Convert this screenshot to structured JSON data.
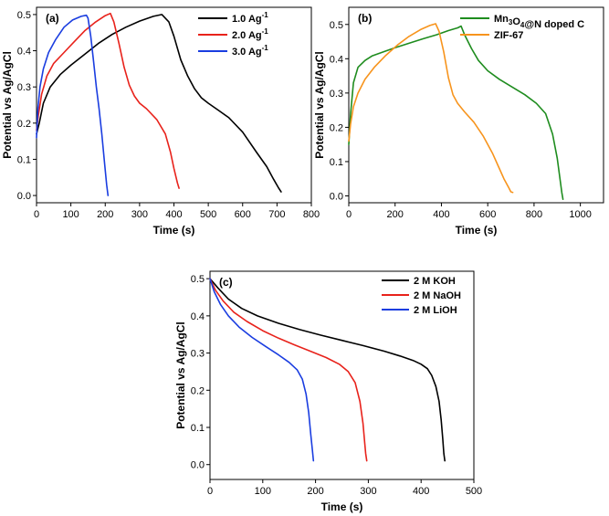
{
  "chart_data": [
    {
      "type": "line",
      "panel_label": "(a)",
      "xlabel": "Time (s)",
      "ylabel": "Potential vs Ag/AgCl",
      "xlim": [
        0,
        800
      ],
      "ylim": [
        -0.02,
        0.52
      ],
      "xticks": [
        0,
        100,
        200,
        300,
        400,
        500,
        600,
        700,
        800
      ],
      "yticks": [
        0.0,
        0.1,
        0.2,
        0.3,
        0.4,
        0.5
      ],
      "legend_position": "top-right",
      "series": [
        {
          "name": "1.0 Ag⁻¹",
          "legend": {
            "text": "1.0 Ag",
            "sup": "-1"
          },
          "color": "#000000",
          "x": [
            0,
            8,
            20,
            40,
            70,
            100,
            140,
            180,
            220,
            260,
            300,
            340,
            365,
            385,
            400,
            420,
            440,
            460,
            480,
            500,
            530,
            560,
            600,
            640,
            670,
            690,
            705,
            712
          ],
          "y": [
            0.17,
            0.2,
            0.255,
            0.3,
            0.335,
            0.36,
            0.39,
            0.42,
            0.445,
            0.465,
            0.482,
            0.495,
            0.5,
            0.48,
            0.44,
            0.375,
            0.33,
            0.295,
            0.27,
            0.255,
            0.235,
            0.215,
            0.175,
            0.12,
            0.08,
            0.045,
            0.02,
            0.01
          ]
        },
        {
          "name": "2.0 Ag⁻¹",
          "legend": {
            "text": "2.0 Ag",
            "sup": "-1"
          },
          "color": "#e8221b",
          "x": [
            0,
            5,
            15,
            30,
            50,
            80,
            110,
            140,
            170,
            200,
            215,
            225,
            240,
            255,
            270,
            285,
            300,
            320,
            350,
            375,
            390,
            400,
            410,
            415
          ],
          "y": [
            0.18,
            0.22,
            0.28,
            0.33,
            0.365,
            0.395,
            0.425,
            0.455,
            0.478,
            0.497,
            0.503,
            0.48,
            0.42,
            0.355,
            0.305,
            0.275,
            0.255,
            0.24,
            0.21,
            0.17,
            0.12,
            0.075,
            0.035,
            0.02
          ]
        },
        {
          "name": "3.0 Ag⁻¹",
          "legend": {
            "text": "3.0 Ag",
            "sup": "-1"
          },
          "color": "#1a3de0",
          "x": [
            0,
            4,
            10,
            20,
            35,
            55,
            80,
            105,
            130,
            145,
            150,
            158,
            166,
            174,
            182,
            190,
            198,
            204,
            208
          ],
          "y": [
            0.16,
            0.24,
            0.3,
            0.35,
            0.395,
            0.43,
            0.465,
            0.485,
            0.495,
            0.498,
            0.49,
            0.44,
            0.37,
            0.3,
            0.24,
            0.17,
            0.09,
            0.03,
            0.0
          ]
        }
      ]
    },
    {
      "type": "line",
      "panel_label": "(b)",
      "xlabel": "Time (s)",
      "ylabel": "Potential vs Ag/AgCl",
      "xlim": [
        0,
        1100
      ],
      "ylim": [
        -0.02,
        0.55
      ],
      "xticks": [
        0,
        200,
        400,
        600,
        800,
        1000
      ],
      "yticks": [
        0.0,
        0.1,
        0.2,
        0.3,
        0.4,
        0.5
      ],
      "legend_position": "top-right",
      "series": [
        {
          "name": "Mn₃O₄@N doped C",
          "legend": {
            "text": "Mn",
            "parts": [
              [
                "Mn",
                ""
              ],
              [
                "3",
                "sub"
              ],
              [
                "O",
                ""
              ],
              [
                "4",
                "sub"
              ],
              [
                "@N doped C",
                ""
              ]
            ]
          },
          "color": "#1e8c1e",
          "x": [
            0,
            8,
            20,
            40,
            70,
            100,
            150,
            200,
            260,
            320,
            380,
            430,
            470,
            485,
            500,
            530,
            560,
            600,
            650,
            700,
            760,
            810,
            850,
            880,
            900,
            912,
            920,
            925
          ],
          "y": [
            0.15,
            0.24,
            0.33,
            0.375,
            0.395,
            0.408,
            0.42,
            0.432,
            0.445,
            0.458,
            0.47,
            0.482,
            0.49,
            0.495,
            0.47,
            0.43,
            0.395,
            0.365,
            0.34,
            0.32,
            0.295,
            0.27,
            0.24,
            0.18,
            0.11,
            0.05,
            0.01,
            -0.01
          ]
        },
        {
          "name": "ZIF-67",
          "legend": {
            "text": "ZIF-67"
          },
          "color": "#f7941d",
          "x": [
            0,
            8,
            20,
            40,
            70,
            110,
            160,
            210,
            260,
            310,
            350,
            375,
            390,
            410,
            430,
            450,
            470,
            500,
            540,
            580,
            620,
            650,
            670,
            690,
            700,
            708
          ],
          "y": [
            0.16,
            0.21,
            0.26,
            0.3,
            0.34,
            0.375,
            0.41,
            0.44,
            0.465,
            0.485,
            0.497,
            0.502,
            0.48,
            0.42,
            0.345,
            0.295,
            0.27,
            0.245,
            0.215,
            0.175,
            0.125,
            0.08,
            0.05,
            0.025,
            0.012,
            0.01
          ]
        }
      ]
    },
    {
      "type": "line",
      "panel_label": "(c)",
      "xlabel": "Time (s)",
      "ylabel": "Potential vs Ag/AgCl",
      "xlim": [
        0,
        500
      ],
      "ylim": [
        -0.04,
        0.52
      ],
      "xticks": [
        0,
        100,
        200,
        300,
        400,
        500
      ],
      "yticks": [
        0.0,
        0.1,
        0.2,
        0.3,
        0.4,
        0.5
      ],
      "legend_position": "top-right",
      "series": [
        {
          "name": "2 M KOH",
          "legend": {
            "text": "2 M KOH"
          },
          "color": "#000000",
          "x": [
            0,
            15,
            35,
            60,
            90,
            130,
            170,
            210,
            250,
            290,
            330,
            360,
            385,
            400,
            412,
            420,
            428,
            434,
            438,
            441,
            443,
            445
          ],
          "y": [
            0.5,
            0.475,
            0.445,
            0.42,
            0.4,
            0.38,
            0.363,
            0.348,
            0.334,
            0.32,
            0.305,
            0.292,
            0.28,
            0.27,
            0.258,
            0.24,
            0.21,
            0.17,
            0.12,
            0.07,
            0.03,
            0.01
          ]
        },
        {
          "name": "2 M NaOH",
          "legend": {
            "text": "2 M NaOH"
          },
          "color": "#e8221b",
          "x": [
            0,
            10,
            25,
            45,
            70,
            100,
            130,
            160,
            190,
            220,
            245,
            262,
            275,
            284,
            290,
            293,
            295,
            297
          ],
          "y": [
            0.5,
            0.47,
            0.44,
            0.41,
            0.385,
            0.36,
            0.34,
            0.322,
            0.305,
            0.288,
            0.27,
            0.25,
            0.22,
            0.17,
            0.11,
            0.06,
            0.03,
            0.01
          ]
        },
        {
          "name": "2 M LiOH",
          "legend": {
            "text": "2 M LiOH"
          },
          "color": "#1a3de0",
          "x": [
            0,
            8,
            20,
            35,
            55,
            80,
            105,
            130,
            150,
            165,
            175,
            182,
            187,
            191,
            194,
            196
          ],
          "y": [
            0.5,
            0.465,
            0.43,
            0.4,
            0.37,
            0.342,
            0.318,
            0.295,
            0.275,
            0.255,
            0.23,
            0.19,
            0.14,
            0.08,
            0.04,
            0.01
          ]
        }
      ]
    }
  ]
}
